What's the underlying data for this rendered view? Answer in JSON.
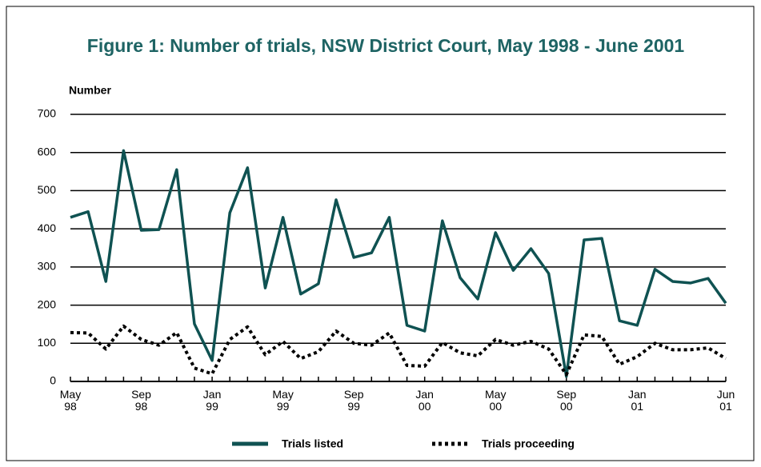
{
  "chart_data": {
    "type": "line",
    "title": "Figure 1: Number of trials, NSW District Court, May 1998 - June 2001",
    "y_label": "Number",
    "categories": [
      "May 98",
      null,
      null,
      null,
      "Sep 98",
      null,
      null,
      null,
      "Jan 99",
      null,
      null,
      null,
      "May 99",
      null,
      null,
      null,
      "Sep 99",
      null,
      null,
      null,
      "Jan 00",
      null,
      null,
      null,
      "May 00",
      null,
      null,
      null,
      "Sep 00",
      null,
      null,
      null,
      "Jan 01",
      null,
      null,
      null,
      null,
      "Jun 01"
    ],
    "series": [
      {
        "name": "Trials listed",
        "color": "#0f5252",
        "values": [
          430,
          445,
          262,
          605,
          396,
          398,
          555,
          151,
          55,
          442,
          560,
          245,
          430,
          229,
          256,
          476,
          325,
          337,
          430,
          147,
          132,
          421,
          272,
          216,
          390,
          291,
          348,
          283,
          13,
          371,
          375,
          159,
          147,
          294,
          262,
          258,
          270,
          205
        ]
      },
      {
        "name": "Trials proceeding",
        "color": "#000000",
        "values": [
          128,
          127,
          85,
          145,
          110,
          95,
          128,
          35,
          20,
          110,
          143,
          70,
          105,
          60,
          78,
          132,
          100,
          95,
          127,
          42,
          40,
          102,
          75,
          67,
          110,
          95,
          105,
          85,
          18,
          122,
          118,
          45,
          65,
          100,
          83,
          83,
          88,
          60
        ]
      }
    ],
    "ylim": [
      0,
      700
    ],
    "yticks": [
      0,
      100,
      200,
      300,
      400,
      500,
      600,
      700
    ],
    "grid": true,
    "legend": "bottom"
  }
}
